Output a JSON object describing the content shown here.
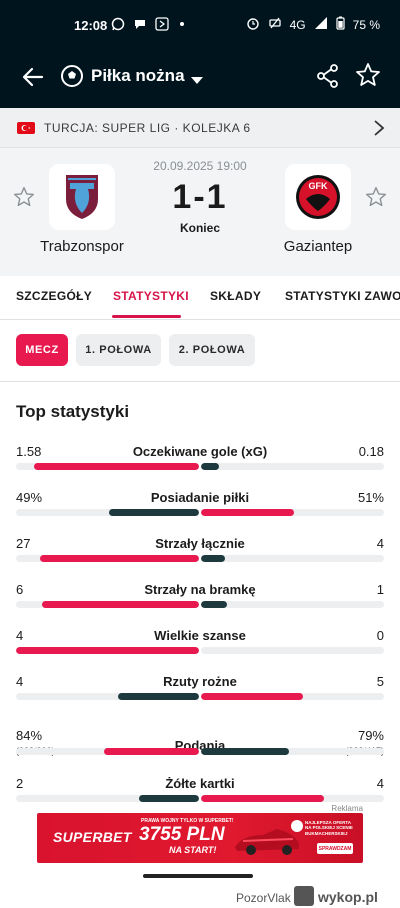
{
  "status_bar": {
    "time": "12:08",
    "network": "4G",
    "battery": "75 %"
  },
  "header": {
    "sport": "Piłka nożna"
  },
  "competition": {
    "text": "TURCJA: SUPER LIG · KOLEJKA 6"
  },
  "match": {
    "datetime": "20.09.2025 19:00",
    "score": "1-1",
    "status": "Koniec",
    "home": {
      "name": "Trabzonspor"
    },
    "away": {
      "name": "Gaziantep",
      "logo_text": "GFK"
    }
  },
  "tabs": [
    "SZCZEGÓŁY",
    "STATYSTYKI",
    "SKŁADY",
    "STATYSTYKI ZAWODNIKÓW"
  ],
  "active_tab": "STATYSTYKI",
  "periods": [
    "MECZ",
    "1. POŁOWA",
    "2. POŁOWA"
  ],
  "active_period": "MECZ",
  "section_title": "Top statystyki",
  "colors": {
    "accent": "#e8194f",
    "home_fill": "#e8194f",
    "away_fill": "#1e3a3f",
    "track": "#eceef0"
  },
  "stats": [
    {
      "label": "Oczekiwane gole (xG)",
      "home": "1.58",
      "away": "0.18",
      "home_share": 0.9,
      "away_share": 0.1,
      "home_leads": true
    },
    {
      "label": "Posiadanie piłki",
      "home": "49%",
      "away": "51%",
      "home_share": 0.49,
      "away_share": 0.51,
      "home_leads": false
    },
    {
      "label": "Strzały łącznie",
      "home": "27",
      "away": "4",
      "home_share": 0.87,
      "away_share": 0.13,
      "home_leads": true
    },
    {
      "label": "Strzały na bramkę",
      "home": "6",
      "away": "1",
      "home_share": 0.86,
      "away_share": 0.14,
      "home_leads": true
    },
    {
      "label": "Wielkie szanse",
      "home": "4",
      "away": "0",
      "home_share": 1.0,
      "away_share": 0.0,
      "home_leads": true
    },
    {
      "label": "Rzuty rożne",
      "home": "4",
      "away": "5",
      "home_share": 0.44,
      "away_share": 0.56,
      "home_leads": false
    },
    {
      "label": "Podania",
      "home": "84%",
      "away": "79%",
      "home_sub": "(328/390)",
      "away_sub": "(328/417)",
      "home_share": 0.52,
      "away_share": 0.48,
      "home_leads": true
    },
    {
      "label": "Żółte kartki",
      "home": "2",
      "away": "4",
      "home_share": 0.33,
      "away_share": 0.67,
      "home_leads": false
    }
  ],
  "ad": {
    "label": "Reklama",
    "brand": "SUPERBET",
    "top_text": "PRAWA WOJNY TYLKO W SUPERBET!",
    "amount": "3755 PLN",
    "tagline": "NA START!",
    "right_text": "NAJLEPSZA OFERTA NA POLSKIEJ SCENIE BUKMACHERSKIEJ",
    "cta": "SPRAWDZAM"
  },
  "watermark": {
    "user": "PozorVlak",
    "z": "z",
    "site": "wykop.pl"
  }
}
